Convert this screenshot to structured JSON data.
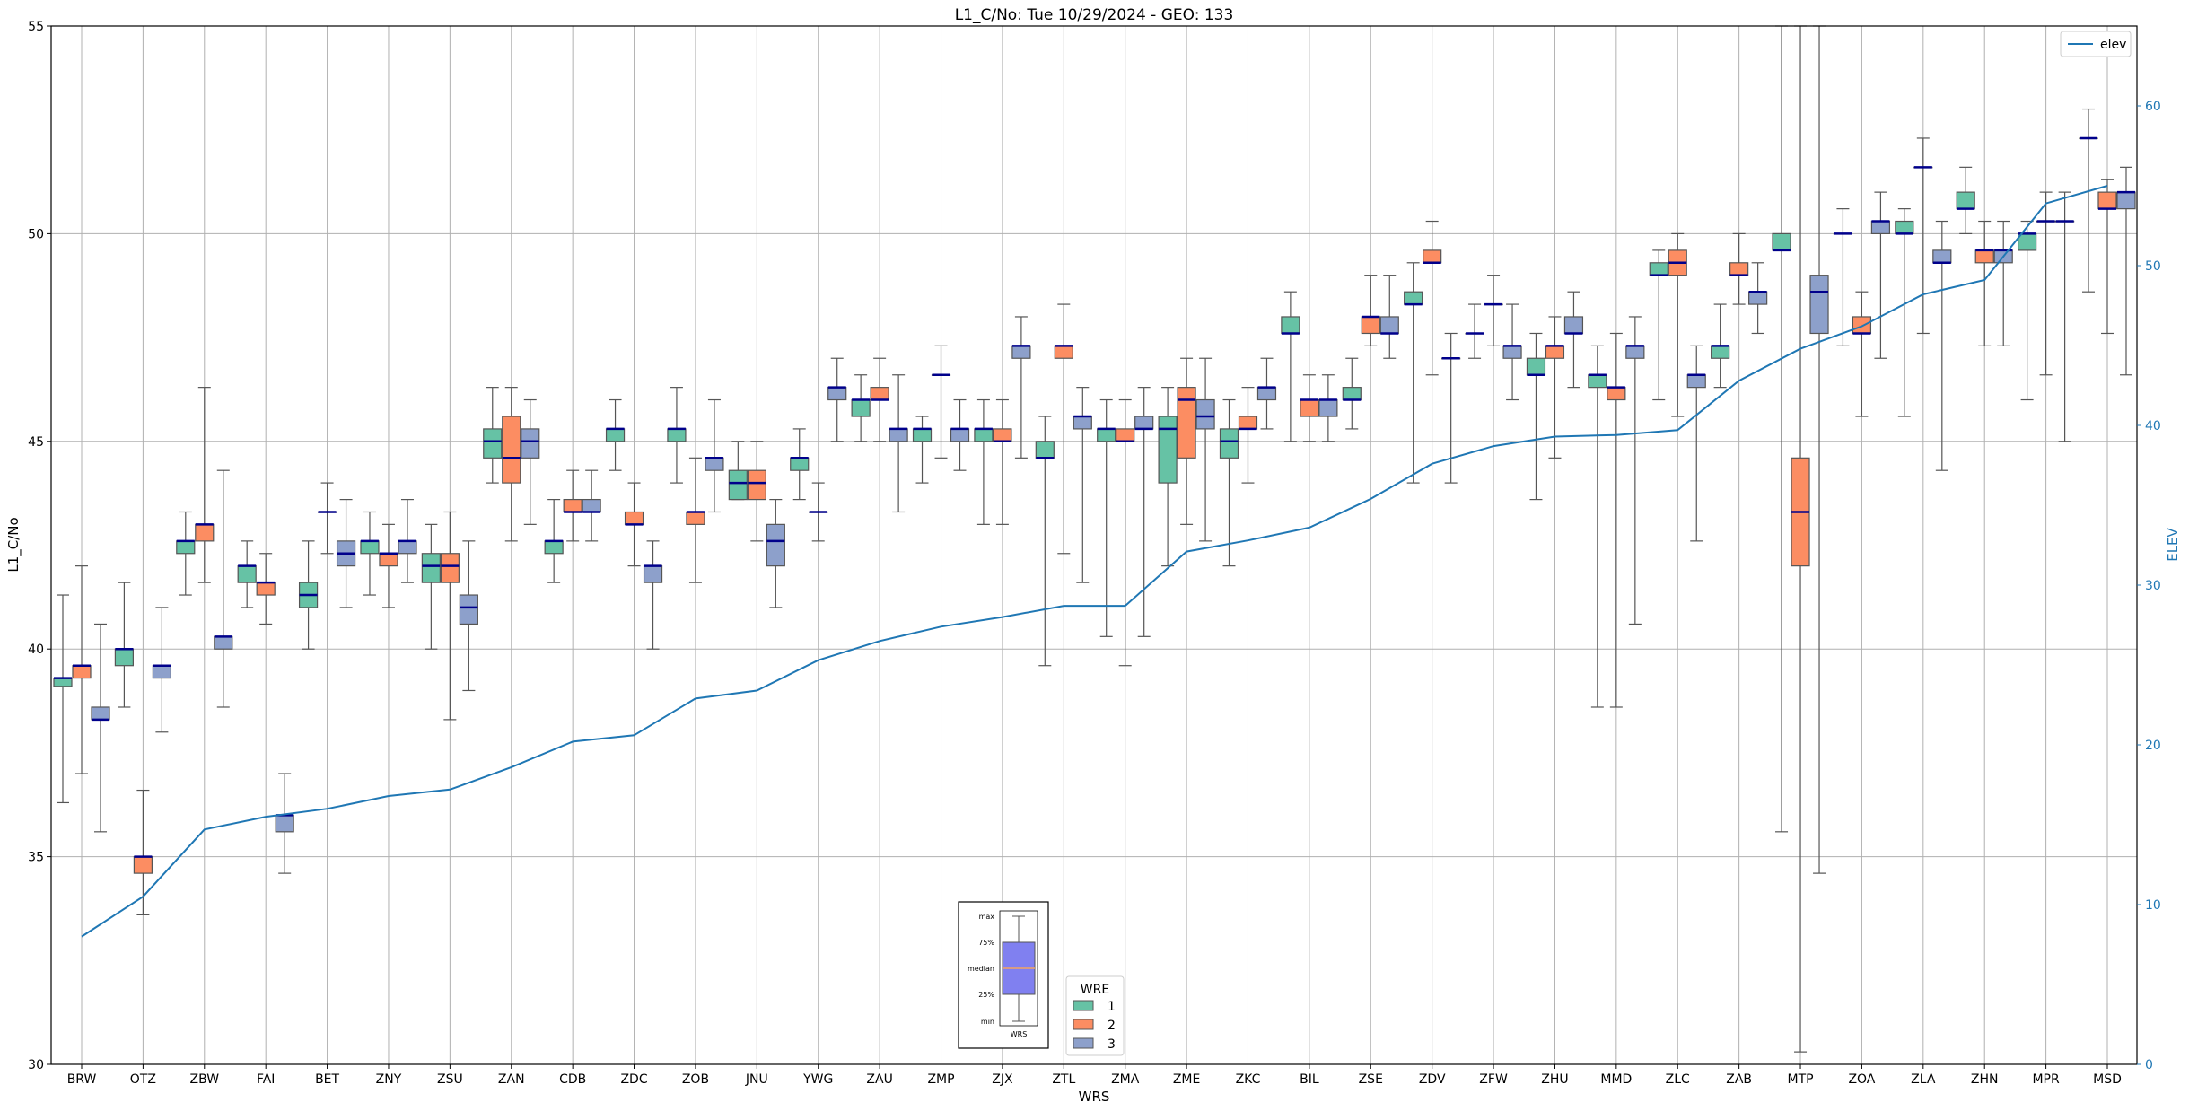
{
  "chart_data": {
    "type": "box",
    "title": "L1_C/No: Tue 10/29/2024 - GEO: 133",
    "xlabel": "WRS",
    "ylabel": "L1_C/No",
    "y2label": "ELEV",
    "ylim": [
      30,
      55
    ],
    "y2lim": [
      0,
      65
    ],
    "yticks": [
      30,
      35,
      40,
      45,
      50,
      55
    ],
    "y2ticks": [
      0,
      10,
      20,
      30,
      40,
      50,
      60
    ],
    "grid": true,
    "colors": {
      "wre1": "#66c2a5",
      "wre2": "#fc8d62",
      "wre3": "#8da0cb",
      "elev": "#1f77b4",
      "median": "#00008b"
    },
    "categories": [
      "BRW",
      "OTZ",
      "ZBW",
      "FAI",
      "BET",
      "ZNY",
      "ZSU",
      "ZAN",
      "CDB",
      "ZDC",
      "ZOB",
      "JNU",
      "YWG",
      "ZAU",
      "ZMP",
      "ZJX",
      "ZTL",
      "ZMA",
      "ZME",
      "ZKC",
      "BIL",
      "ZSE",
      "ZDV",
      "ZFW",
      "ZHU",
      "MMD",
      "ZLC",
      "ZAB",
      "MTP",
      "ZOA",
      "ZLA",
      "ZHN",
      "MPR",
      "MSD"
    ],
    "elev_legend": {
      "label": "elev",
      "position": "top-right"
    },
    "elev": [
      8,
      10.5,
      14.7,
      15.5,
      16,
      16.8,
      17.2,
      18.6,
      20.2,
      20.6,
      22.9,
      23.4,
      25.3,
      26.5,
      27.4,
      28,
      28.7,
      28.7,
      32.1,
      32.8,
      33.6,
      35.4,
      37.6,
      38.7,
      39.3,
      39.4,
      39.7,
      42.8,
      44.8,
      46.2,
      48.2,
      49.1,
      53.9,
      55
    ],
    "wre_legend": {
      "title": "WRE",
      "labels": [
        "1",
        "2",
        "3"
      ]
    },
    "box_legend": {
      "labels": [
        "max",
        "75%",
        "median",
        "25%",
        "min"
      ],
      "xlabel": "WRS"
    },
    "series": [
      {
        "name": "1",
        "boxes": [
          [
            36.3,
            39.1,
            39.3,
            39.3,
            41.3
          ],
          [
            38.6,
            39.6,
            40.0,
            40.0,
            41.6
          ],
          [
            41.3,
            42.3,
            42.6,
            42.6,
            43.3
          ],
          [
            41.0,
            41.6,
            42.0,
            42.0,
            42.6
          ],
          [
            40.0,
            41.0,
            41.3,
            41.6,
            42.6
          ],
          [
            41.3,
            42.3,
            42.6,
            42.6,
            43.3
          ],
          [
            40.0,
            41.6,
            42.0,
            42.3,
            43.0
          ],
          [
            44.0,
            44.6,
            45.0,
            45.3,
            46.3
          ],
          [
            41.6,
            42.3,
            42.6,
            42.6,
            43.6
          ],
          [
            44.3,
            45.0,
            45.3,
            45.3,
            46.0
          ],
          [
            44.0,
            45.0,
            45.3,
            45.3,
            46.3
          ],
          [
            43.6,
            43.6,
            44.0,
            44.3,
            45.0
          ],
          [
            43.6,
            44.3,
            44.6,
            44.6,
            45.3
          ],
          [
            45.0,
            45.6,
            46.0,
            46.0,
            46.6
          ],
          [
            44.0,
            45.0,
            45.3,
            45.3,
            45.6
          ],
          [
            43.0,
            45.0,
            45.3,
            45.3,
            46.0
          ],
          [
            39.6,
            44.6,
            44.6,
            45.0,
            45.6
          ],
          [
            40.3,
            45.0,
            45.3,
            45.3,
            46.0
          ],
          [
            42.0,
            44.0,
            45.3,
            45.6,
            46.3
          ],
          [
            42.0,
            44.6,
            45.0,
            45.3,
            46.0
          ],
          [
            45.0,
            47.6,
            47.6,
            48.0,
            48.6
          ],
          [
            45.3,
            46.0,
            46.0,
            46.3,
            47.0
          ],
          [
            44.0,
            48.3,
            48.3,
            48.6,
            49.3
          ],
          [
            47.0,
            47.6,
            47.6,
            47.6,
            48.3
          ],
          [
            43.6,
            46.6,
            46.6,
            47.0,
            47.6
          ],
          [
            38.6,
            46.3,
            46.6,
            46.6,
            47.3
          ],
          [
            46.0,
            49.0,
            49.0,
            49.3,
            49.6
          ],
          [
            46.3,
            47.0,
            47.3,
            47.3,
            48.3
          ],
          [
            35.6,
            49.6,
            49.6,
            50.0,
            55.0
          ],
          [
            47.3,
            50.0,
            50.0,
            50.0,
            50.6
          ],
          [
            45.6,
            50.0,
            50.0,
            50.3,
            50.6
          ],
          [
            50.0,
            50.6,
            50.6,
            51.0,
            51.6
          ],
          [
            46.0,
            49.6,
            50.0,
            50.0,
            50.3
          ],
          [
            48.6,
            52.3,
            52.3,
            52.3,
            53.0
          ]
        ]
      },
      {
        "name": "2",
        "boxes": [
          [
            37.0,
            39.3,
            39.6,
            39.6,
            42.0
          ],
          [
            33.6,
            34.6,
            35.0,
            35.0,
            36.6
          ],
          [
            41.6,
            42.6,
            43.0,
            43.0,
            46.3
          ],
          [
            40.6,
            41.3,
            41.6,
            41.6,
            42.3
          ],
          [
            42.3,
            43.3,
            43.3,
            43.3,
            44.0
          ],
          [
            41.0,
            42.0,
            42.3,
            42.3,
            43.0
          ],
          [
            38.3,
            41.6,
            42.0,
            42.3,
            43.3
          ],
          [
            42.6,
            44.0,
            44.6,
            45.6,
            46.3
          ],
          [
            42.6,
            43.3,
            43.3,
            43.6,
            44.3
          ],
          [
            42.0,
            43.0,
            43.0,
            43.3,
            44.0
          ],
          [
            41.6,
            43.0,
            43.3,
            43.3,
            44.6
          ],
          [
            42.6,
            43.6,
            44.0,
            44.3,
            45.0
          ],
          [
            42.6,
            43.3,
            43.3,
            43.3,
            44.0
          ],
          [
            45.0,
            46.0,
            46.0,
            46.3,
            47.0
          ],
          [
            44.6,
            46.6,
            46.6,
            46.6,
            47.3
          ],
          [
            43.0,
            45.0,
            45.0,
            45.3,
            46.0
          ],
          [
            42.3,
            47.0,
            47.3,
            47.3,
            48.3
          ],
          [
            39.6,
            45.0,
            45.0,
            45.3,
            46.0
          ],
          [
            43.0,
            44.6,
            46.0,
            46.3,
            47.0
          ],
          [
            44.0,
            45.3,
            45.3,
            45.6,
            46.3
          ],
          [
            45.0,
            45.6,
            46.0,
            46.0,
            46.6
          ],
          [
            47.3,
            47.6,
            48.0,
            48.0,
            49.0
          ],
          [
            46.6,
            49.3,
            49.3,
            49.6,
            50.3
          ],
          [
            47.3,
            48.3,
            48.3,
            48.3,
            49.0
          ],
          [
            44.6,
            47.0,
            47.3,
            47.3,
            48.0
          ],
          [
            38.6,
            46.0,
            46.3,
            46.3,
            47.6
          ],
          [
            45.6,
            49.0,
            49.3,
            49.6,
            50.0
          ],
          [
            48.3,
            49.0,
            49.0,
            49.3,
            50.0
          ],
          [
            30.3,
            42.0,
            43.3,
            44.6,
            55.0
          ],
          [
            45.6,
            47.6,
            47.6,
            48.0,
            48.6
          ],
          [
            47.6,
            51.6,
            51.6,
            51.6,
            52.3
          ],
          [
            47.3,
            49.3,
            49.6,
            49.6,
            50.3
          ],
          [
            46.6,
            50.3,
            50.3,
            50.3,
            51.0
          ],
          [
            47.6,
            50.6,
            50.6,
            51.0,
            51.3
          ]
        ]
      },
      {
        "name": "3",
        "boxes": [
          [
            35.6,
            38.3,
            38.3,
            38.6,
            40.6
          ],
          [
            38.0,
            39.3,
            39.6,
            39.6,
            41.0
          ],
          [
            38.6,
            40.0,
            40.3,
            40.3,
            44.3
          ],
          [
            34.6,
            35.6,
            36.0,
            36.0,
            37.0
          ],
          [
            41.0,
            42.0,
            42.3,
            42.6,
            43.6
          ],
          [
            41.6,
            42.3,
            42.6,
            42.6,
            43.6
          ],
          [
            39.0,
            40.6,
            41.0,
            41.3,
            42.6
          ],
          [
            43.0,
            44.6,
            45.0,
            45.3,
            46.0
          ],
          [
            42.6,
            43.3,
            43.3,
            43.6,
            44.3
          ],
          [
            40.0,
            41.6,
            42.0,
            42.0,
            42.6
          ],
          [
            43.3,
            44.3,
            44.6,
            44.6,
            46.0
          ],
          [
            41.0,
            42.0,
            42.6,
            43.0,
            43.6
          ],
          [
            45.0,
            46.0,
            46.3,
            46.3,
            47.0
          ],
          [
            43.3,
            45.0,
            45.3,
            45.3,
            46.6
          ],
          [
            44.3,
            45.0,
            45.3,
            45.3,
            46.0
          ],
          [
            44.6,
            47.0,
            47.3,
            47.3,
            48.0
          ],
          [
            41.6,
            45.3,
            45.6,
            45.6,
            46.3
          ],
          [
            40.3,
            45.3,
            45.3,
            45.6,
            46.3
          ],
          [
            42.6,
            45.3,
            45.6,
            46.0,
            47.0
          ],
          [
            45.3,
            46.0,
            46.3,
            46.3,
            47.0
          ],
          [
            45.0,
            45.6,
            46.0,
            46.0,
            46.6
          ],
          [
            47.0,
            47.6,
            47.6,
            48.0,
            49.0
          ],
          [
            44.0,
            47.0,
            47.0,
            47.0,
            47.6
          ],
          [
            46.0,
            47.0,
            47.3,
            47.3,
            48.3
          ],
          [
            46.3,
            47.6,
            47.6,
            48.0,
            48.6
          ],
          [
            40.6,
            47.0,
            47.3,
            47.3,
            48.0
          ],
          [
            42.6,
            46.3,
            46.6,
            46.6,
            47.3
          ],
          [
            47.6,
            48.3,
            48.6,
            48.6,
            49.3
          ],
          [
            34.6,
            47.6,
            48.6,
            49.0,
            55.0
          ],
          [
            47.0,
            50.0,
            50.3,
            50.3,
            51.0
          ],
          [
            44.3,
            49.3,
            49.3,
            49.6,
            50.3
          ],
          [
            47.3,
            49.3,
            49.6,
            49.6,
            50.3
          ],
          [
            45.0,
            50.3,
            50.3,
            50.3,
            51.0
          ],
          [
            46.6,
            50.6,
            51.0,
            51.0,
            51.6
          ]
        ]
      }
    ]
  }
}
